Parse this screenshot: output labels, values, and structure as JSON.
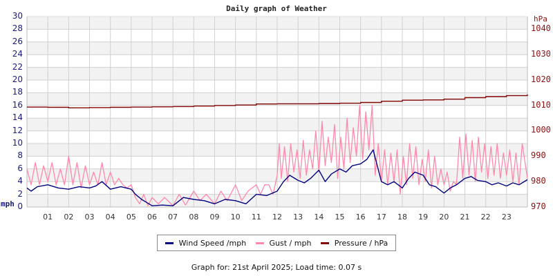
{
  "chart_data": {
    "type": "line",
    "title": "Daily graph of Weather",
    "xlabel": "",
    "ylabel_left": "mph",
    "ylabel_right": "hPa",
    "x_ticks": [
      "01",
      "02",
      "03",
      "04",
      "05",
      "06",
      "07",
      "08",
      "09",
      "10",
      "11",
      "12",
      "13",
      "14",
      "15",
      "16",
      "17",
      "18",
      "19",
      "20",
      "21",
      "22",
      "23"
    ],
    "x_range_hours": [
      0,
      24
    ],
    "y_left_ticks": [
      0,
      2,
      4,
      6,
      8,
      10,
      12,
      14,
      16,
      18,
      20,
      22,
      24,
      26,
      28,
      30
    ],
    "y_left_range": [
      0,
      30
    ],
    "y_right_ticks": [
      970,
      980,
      990,
      1000,
      1010,
      1020,
      1030,
      1040
    ],
    "y_right_range": [
      970,
      1040
    ],
    "grid": true,
    "legend_position": "bottom",
    "series": [
      {
        "name": "Wind Speed /mph",
        "color": "#000080",
        "axis": "left",
        "hours": [
          0.0,
          0.2,
          0.5,
          1.0,
          1.5,
          2.0,
          2.5,
          3.0,
          3.3,
          3.6,
          4.0,
          4.5,
          5.0,
          5.2,
          5.5,
          6.0,
          6.5,
          7.0,
          7.5,
          8.0,
          8.5,
          9.0,
          9.5,
          10.0,
          10.5,
          11.0,
          11.5,
          12.0,
          12.3,
          12.6,
          13.0,
          13.3,
          13.6,
          14.0,
          14.3,
          14.6,
          15.0,
          15.3,
          15.6,
          16.0,
          16.3,
          16.6,
          17.0,
          17.3,
          17.6,
          18.0,
          18.3,
          18.6,
          19.0,
          19.3,
          19.6,
          20.0,
          20.3,
          20.6,
          21.0,
          21.3,
          21.6,
          22.0,
          22.3,
          22.6,
          23.0,
          23.3,
          23.6,
          24.0
        ],
        "values": [
          3.0,
          2.5,
          3.2,
          3.5,
          3.0,
          2.8,
          3.2,
          3.0,
          3.3,
          4.0,
          2.8,
          3.2,
          2.8,
          2.0,
          1.2,
          0.2,
          0.3,
          0.2,
          1.5,
          1.2,
          1.0,
          0.5,
          1.2,
          1.0,
          0.5,
          2.0,
          1.8,
          2.5,
          4.0,
          5.0,
          4.2,
          3.8,
          4.5,
          5.8,
          4.0,
          5.2,
          6.0,
          5.5,
          6.5,
          6.8,
          7.5,
          9.0,
          4.0,
          3.5,
          4.0,
          3.0,
          4.5,
          5.5,
          5.0,
          3.5,
          3.2,
          2.2,
          3.0,
          3.5,
          4.5,
          4.8,
          4.2,
          4.0,
          3.5,
          3.8,
          3.3,
          3.8,
          3.5,
          4.3
        ]
      },
      {
        "name": "Gust / mph",
        "color": "#ff88aa",
        "axis": "left",
        "hours": [
          0.0,
          0.2,
          0.4,
          0.6,
          0.8,
          1.0,
          1.2,
          1.4,
          1.6,
          1.8,
          2.0,
          2.2,
          2.4,
          2.6,
          2.8,
          3.0,
          3.2,
          3.4,
          3.6,
          3.8,
          4.0,
          4.2,
          4.4,
          4.6,
          4.8,
          5.0,
          5.2,
          5.4,
          5.6,
          5.8,
          6.0,
          6.3,
          6.6,
          7.0,
          7.3,
          7.6,
          8.0,
          8.3,
          8.6,
          9.0,
          9.3,
          9.6,
          10.0,
          10.3,
          10.6,
          11.0,
          11.2,
          11.4,
          11.6,
          11.8,
          12.0,
          12.1,
          12.2,
          12.35,
          12.5,
          12.65,
          12.8,
          12.95,
          13.1,
          13.25,
          13.4,
          13.55,
          13.7,
          13.85,
          14.0,
          14.15,
          14.3,
          14.45,
          14.6,
          14.75,
          14.9,
          15.05,
          15.2,
          15.35,
          15.5,
          15.65,
          15.8,
          15.95,
          16.1,
          16.25,
          16.4,
          16.55,
          16.7,
          16.85,
          17.0,
          17.15,
          17.3,
          17.45,
          17.6,
          17.75,
          17.9,
          18.05,
          18.2,
          18.35,
          18.5,
          18.65,
          18.8,
          18.95,
          19.1,
          19.25,
          19.4,
          19.55,
          19.7,
          19.85,
          20.0,
          20.15,
          20.3,
          20.45,
          20.6,
          20.75,
          20.9,
          21.05,
          21.2,
          21.35,
          21.5,
          21.65,
          21.8,
          21.95,
          22.1,
          22.25,
          22.4,
          22.55,
          22.7,
          22.85,
          23.0,
          23.15,
          23.3,
          23.45,
          23.6,
          23.75,
          24.0
        ],
        "values": [
          6.0,
          3.5,
          7.0,
          3.5,
          6.5,
          4.0,
          7.0,
          3.5,
          6.0,
          3.5,
          8.0,
          3.5,
          7.0,
          3.0,
          6.5,
          3.5,
          5.5,
          3.5,
          7.0,
          3.5,
          5.5,
          3.5,
          4.5,
          3.5,
          3.0,
          3.5,
          1.5,
          0.5,
          2.0,
          0.2,
          1.5,
          0.5,
          1.5,
          0.2,
          2.0,
          0.3,
          2.5,
          1.0,
          2.0,
          0.5,
          2.5,
          1.0,
          3.5,
          1.0,
          2.5,
          3.5,
          2.0,
          3.5,
          3.5,
          2.0,
          5.0,
          10.0,
          4.5,
          9.5,
          4.0,
          10.0,
          5.5,
          9.0,
          4.5,
          10.5,
          5.0,
          9.0,
          6.0,
          12.0,
          5.5,
          13.5,
          6.5,
          11.0,
          7.0,
          13.0,
          4.5,
          11.0,
          6.0,
          14.0,
          7.0,
          12.5,
          8.0,
          16.0,
          7.5,
          15.0,
          9.0,
          16.0,
          5.0,
          10.0,
          4.0,
          9.0,
          3.5,
          8.5,
          4.0,
          9.0,
          2.0,
          8.0,
          3.5,
          10.0,
          4.5,
          9.5,
          3.5,
          7.5,
          4.0,
          9.0,
          3.0,
          8.0,
          3.5,
          6.0,
          3.5,
          5.5,
          2.5,
          4.0,
          3.5,
          11.0,
          4.5,
          11.5,
          5.0,
          10.5,
          4.0,
          11.0,
          5.5,
          10.0,
          4.5,
          9.5,
          5.0,
          10.0,
          4.5,
          8.5,
          5.0,
          9.0,
          4.0,
          8.5,
          3.5,
          10.0,
          4.5
        ]
      },
      {
        "name": "Pressure / hPa",
        "color": "#800000",
        "axis": "right",
        "hours": [
          0,
          1,
          2,
          3,
          4,
          5,
          6,
          7,
          8,
          9,
          10,
          11,
          12,
          13,
          14,
          15,
          16,
          17,
          18,
          19,
          20,
          21,
          22,
          23,
          24
        ],
        "values": [
          1009.3,
          1009.2,
          1009.0,
          1009.1,
          1009.2,
          1009.3,
          1009.4,
          1009.5,
          1009.7,
          1009.9,
          1010.1,
          1010.5,
          1010.6,
          1010.6,
          1010.7,
          1010.8,
          1011.1,
          1011.6,
          1012.0,
          1012.1,
          1012.4,
          1013.0,
          1013.4,
          1013.8,
          1014.3
        ]
      }
    ]
  },
  "legend": {
    "items": [
      {
        "label": "Wind Speed /mph",
        "color": "#000080"
      },
      {
        "label": "Gust / mph",
        "color": "#ff88aa"
      },
      {
        "label": "Pressure / hPa",
        "color": "#800000"
      }
    ]
  },
  "footer": {
    "text": "Graph for: 21st April 2025; Load time: 0.07 s"
  },
  "colors": {
    "grid": "#d0d0d0",
    "band": "#f2f2f2",
    "left_axis_text": "#1a1a80",
    "right_axis_text": "#8b1010"
  }
}
